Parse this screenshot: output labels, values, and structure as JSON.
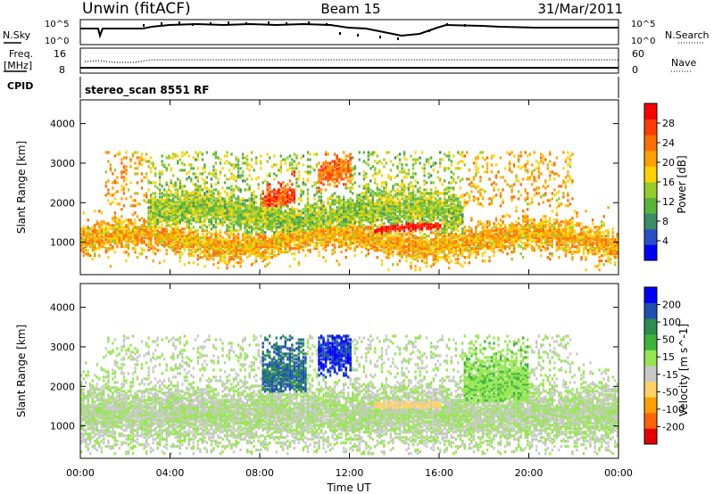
{
  "header": {
    "station": "Unwin (fitACF)",
    "beam": "Beam 15",
    "date": "31/Mar/2011"
  },
  "panels": {
    "noise_sky_label": "N.Sky",
    "noise_search_label": "N.Search",
    "noise_ticks_left": [
      "10^5",
      "10^0"
    ],
    "noise_ticks_right": [
      "10^5",
      "10^0"
    ],
    "freq_label_line1": "Freq.",
    "freq_label_line2": "[MHz]",
    "freq_ticks": [
      "16",
      "8"
    ],
    "nave_label": "Nave",
    "nave_ticks": [
      "60",
      "0"
    ],
    "cpid_label": "CPID",
    "cpid_value": "stereo_scan 8551 RF"
  },
  "colors": {
    "power_scale": [
      "#0000ff",
      "#2850c8",
      "#3c8c64",
      "#5ab43c",
      "#96cd28",
      "#ffd200",
      "#ffa000",
      "#ff6e00",
      "#ff3c00",
      "#ff0000"
    ],
    "velocity_scale": [
      "#e60000",
      "#ff6400",
      "#ffa000",
      "#ffd264",
      "#c8c8c8",
      "#96e650",
      "#3cb43c",
      "#2d8c50",
      "#1e50b4",
      "#0000ff"
    ]
  },
  "chart_data": [
    {
      "type": "heatmap",
      "name": "power",
      "xlabel": "Time UT",
      "ylabel": "Slant Range [km]",
      "x_ticks": [
        "00:00",
        "04:00",
        "08:00",
        "12:00",
        "16:00",
        "20:00",
        "00:00"
      ],
      "y_ticks": [
        1000,
        2000,
        3000,
        4000
      ],
      "xlim": [
        0,
        24
      ],
      "ylim": [
        180,
        4600
      ],
      "colorbar_label": "Power [dB]",
      "colorbar_ticks": [
        "28",
        "24",
        "20",
        "16",
        "12",
        "8",
        "4"
      ],
      "clim": [
        0,
        32
      ],
      "structures": [
        {
          "t_start": 0,
          "t_end": 24,
          "range_center": 1050,
          "range_width": 350,
          "power": 20
        },
        {
          "t_start": 3,
          "t_end": 17,
          "range_center": 1700,
          "range_width": 500,
          "power": 14
        },
        {
          "t_start": 13,
          "t_end": 16,
          "range_center": 1250,
          "range_width": 120,
          "power": 30
        },
        {
          "t_start": 8,
          "t_end": 9.5,
          "range_center": 2000,
          "range_width": 250,
          "power": 26
        },
        {
          "t_start": 10.5,
          "t_end": 12,
          "range_center": 2700,
          "range_width": 300,
          "power": 24
        }
      ]
    },
    {
      "type": "heatmap",
      "name": "velocity",
      "xlabel": "Time UT",
      "ylabel": "Slant Range [km]",
      "x_ticks": [
        "00:00",
        "04:00",
        "08:00",
        "12:00",
        "16:00",
        "20:00",
        "00:00"
      ],
      "y_ticks": [
        1000,
        2000,
        3000,
        4000
      ],
      "xlim": [
        0,
        24
      ],
      "ylim": [
        180,
        4600
      ],
      "colorbar_label": "Velocity [m s^-1]",
      "colorbar_ticks": [
        "200",
        "100",
        "50",
        "15",
        "-15",
        "-50",
        "-100",
        "-200"
      ],
      "clim": [
        -250,
        250
      ],
      "structures": [
        {
          "t_start": 0,
          "t_end": 24,
          "range_center": 1300,
          "range_width": 700,
          "velocity": 0
        },
        {
          "t_start": 10.5,
          "t_end": 12,
          "range_center": 2900,
          "range_width": 500,
          "velocity": 200
        },
        {
          "t_start": 8,
          "t_end": 10,
          "range_center": 2300,
          "range_width": 600,
          "velocity": 150
        },
        {
          "t_start": 13,
          "t_end": 16,
          "range_center": 1500,
          "range_width": 300,
          "velocity": -60
        },
        {
          "t_start": 17,
          "t_end": 20,
          "range_center": 2000,
          "range_width": 800,
          "velocity": 40
        }
      ]
    }
  ]
}
